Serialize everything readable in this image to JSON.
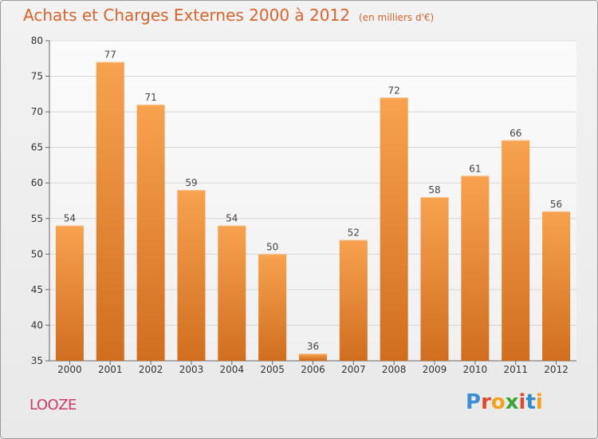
{
  "header": {
    "title": "Achats et Charges Externes 2000 à 2012",
    "unit": "(en milliers d'€)"
  },
  "footer": {
    "commune": "LOOZE",
    "logo_text": "Proxiti",
    "logo_letters": [
      "P",
      "r",
      "o",
      "x",
      "i",
      "t",
      "i"
    ],
    "logo_colors": [
      "#3a8fd6",
      "#e24a2b",
      "#f2a21b",
      "#3aa63a",
      "#e24a2b",
      "#2d8bd0",
      "#f2a21b"
    ]
  },
  "chart_data": {
    "type": "bar",
    "categories": [
      "2000",
      "2001",
      "2002",
      "2003",
      "2004",
      "2005",
      "2006",
      "2007",
      "2008",
      "2009",
      "2010",
      "2011",
      "2012"
    ],
    "values": [
      54,
      77,
      71,
      59,
      54,
      50,
      36,
      52,
      72,
      58,
      61,
      66,
      56
    ],
    "data_labels": [
      "54",
      "77",
      "71",
      "59",
      "54",
      "50",
      "36",
      "52",
      "72",
      "58",
      "61",
      "66",
      "56"
    ],
    "ylim": [
      35,
      80
    ],
    "yticks": [
      35,
      40,
      45,
      50,
      55,
      60,
      65,
      70,
      75,
      80
    ],
    "ytick_labels": [
      "35",
      "40",
      "45",
      "50",
      "55",
      "60",
      "65",
      "70",
      "75",
      "80"
    ],
    "grid": true,
    "bar_color_top": "#f7a24f",
    "bar_color_bottom": "#d06e1e",
    "title": "Achats et Charges Externes 2000 à 2012",
    "xlabel": "",
    "ylabel": ""
  }
}
